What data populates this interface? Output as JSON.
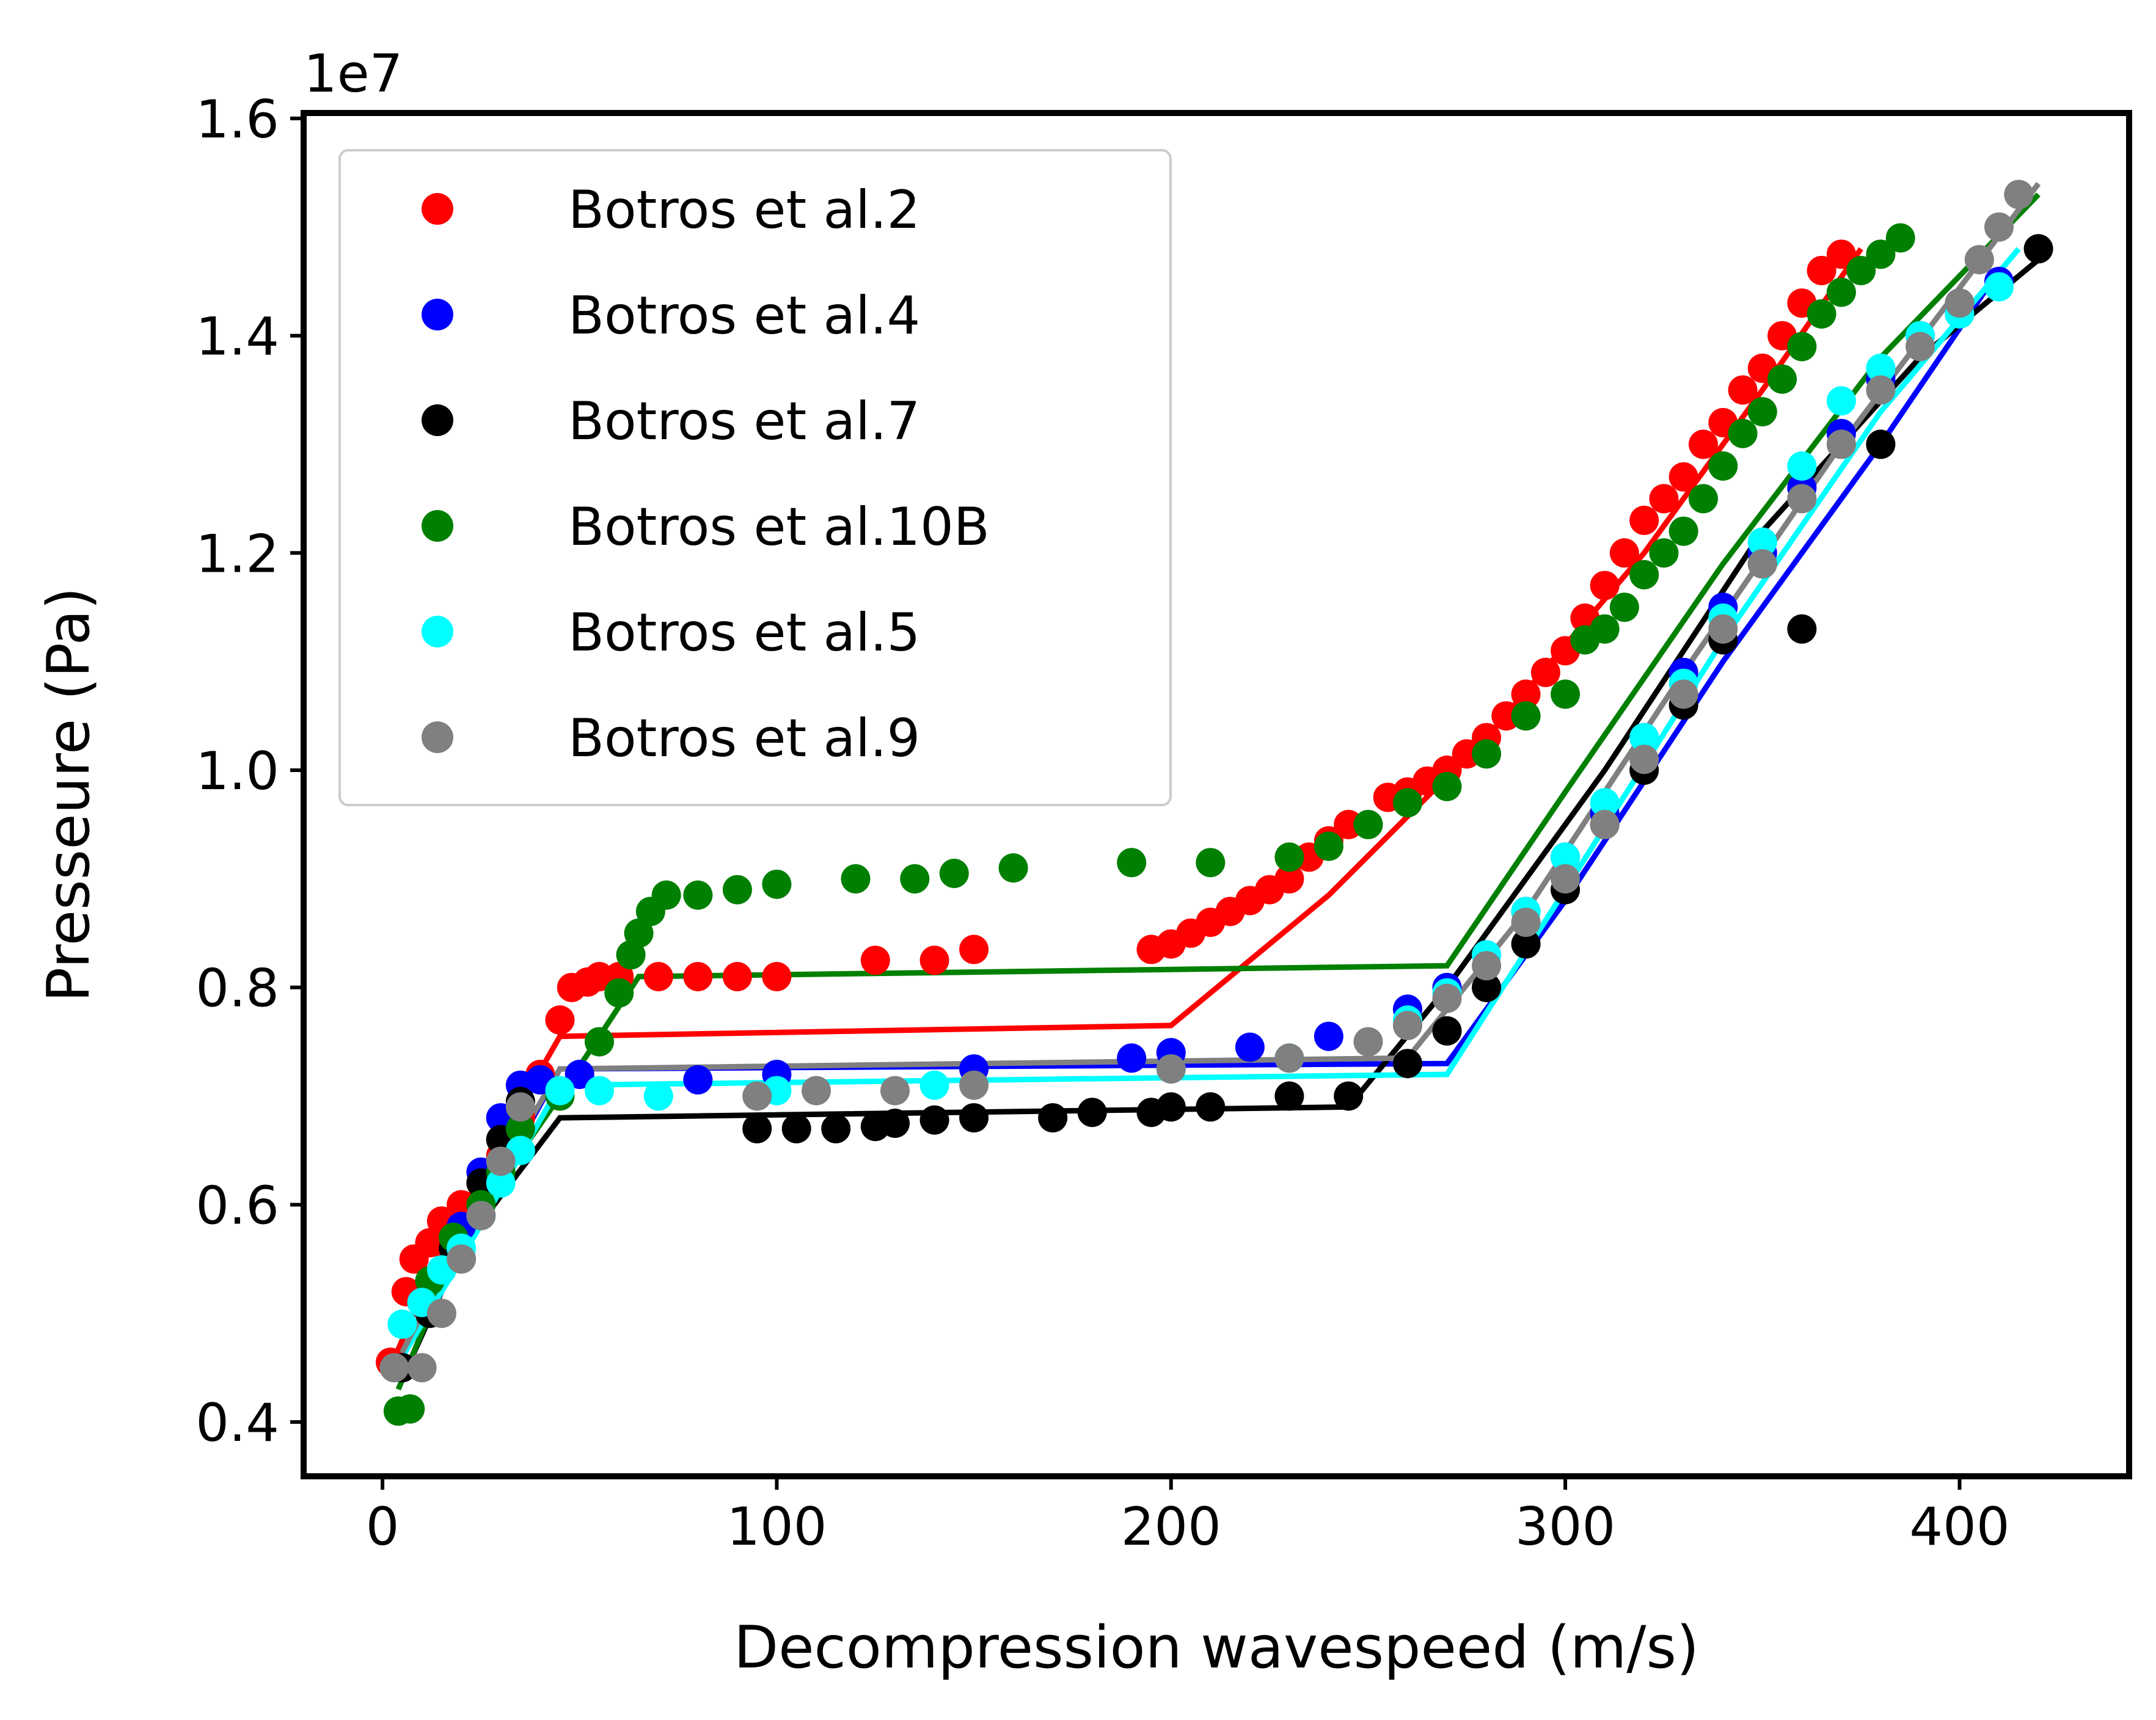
{
  "chart_data": {
    "type": "scatter",
    "xlabel": "Decompression wavespeed (m/s)",
    "ylabel": "Presseure (Pa)",
    "y_offset_label": "1e7",
    "xlim": [
      -20,
      443
    ],
    "ylim": [
      3.5,
      16.05
    ],
    "xticks": [
      0,
      100,
      200,
      300,
      400
    ],
    "xtick_labels": [
      "0",
      "100",
      "200",
      "300",
      "400"
    ],
    "yticks": [
      4,
      6,
      8,
      10,
      12,
      14,
      16
    ],
    "ytick_labels": [
      "0.4",
      "0.6",
      "0.8",
      "1.0",
      "1.2",
      "1.4",
      "1.6"
    ],
    "y_unit_note": "y values in units of 1e6 Pa (axis shows multiples of 1e7)",
    "legend_position": "upper-left",
    "series": [
      {
        "name": "Botros et al.2",
        "color": "#ff0000",
        "points": [
          [
            2,
            4.55
          ],
          [
            6,
            5.2
          ],
          [
            8,
            5.5
          ],
          [
            12,
            5.65
          ],
          [
            15,
            5.85
          ],
          [
            20,
            6.0
          ],
          [
            25,
            6.2
          ],
          [
            30,
            6.45
          ],
          [
            35,
            6.8
          ],
          [
            40,
            7.2
          ],
          [
            45,
            7.7
          ],
          [
            48,
            8.0
          ],
          [
            52,
            8.05
          ],
          [
            55,
            8.1
          ],
          [
            60,
            8.1
          ],
          [
            70,
            8.1
          ],
          [
            80,
            8.1
          ],
          [
            90,
            8.1
          ],
          [
            100,
            8.1
          ],
          [
            125,
            8.25
          ],
          [
            140,
            8.25
          ],
          [
            150,
            8.35
          ],
          [
            195,
            8.35
          ],
          [
            200,
            8.4
          ],
          [
            205,
            8.5
          ],
          [
            210,
            8.6
          ],
          [
            215,
            8.7
          ],
          [
            220,
            8.8
          ],
          [
            225,
            8.9
          ],
          [
            230,
            9.0
          ],
          [
            235,
            9.2
          ],
          [
            240,
            9.35
          ],
          [
            245,
            9.5
          ],
          [
            255,
            9.75
          ],
          [
            260,
            9.8
          ],
          [
            265,
            9.9
          ],
          [
            270,
            10.0
          ],
          [
            275,
            10.15
          ],
          [
            280,
            10.3
          ],
          [
            285,
            10.5
          ],
          [
            290,
            10.7
          ],
          [
            295,
            10.9
          ],
          [
            300,
            11.1
          ],
          [
            305,
            11.4
          ],
          [
            310,
            11.7
          ],
          [
            315,
            12.0
          ],
          [
            320,
            12.3
          ],
          [
            325,
            12.5
          ],
          [
            330,
            12.7
          ],
          [
            335,
            13.0
          ],
          [
            340,
            13.2
          ],
          [
            345,
            13.5
          ],
          [
            350,
            13.7
          ],
          [
            355,
            14.0
          ],
          [
            360,
            14.3
          ],
          [
            365,
            14.6
          ],
          [
            370,
            14.75
          ]
        ],
        "model_line": [
          [
            2,
            4.5
          ],
          [
            15,
            5.6
          ],
          [
            30,
            6.6
          ],
          [
            45,
            7.55
          ],
          [
            200,
            7.65
          ],
          [
            240,
            8.85
          ],
          [
            280,
            10.3
          ],
          [
            320,
            12.0
          ],
          [
            350,
            13.5
          ],
          [
            375,
            14.8
          ]
        ]
      },
      {
        "name": "Botros et al.4",
        "color": "#0000ff",
        "points": [
          [
            5,
            4.5
          ],
          [
            10,
            5.1
          ],
          [
            15,
            5.4
          ],
          [
            20,
            5.8
          ],
          [
            25,
            6.3
          ],
          [
            30,
            6.8
          ],
          [
            35,
            7.1
          ],
          [
            40,
            7.15
          ],
          [
            50,
            7.2
          ],
          [
            80,
            7.15
          ],
          [
            100,
            7.2
          ],
          [
            150,
            7.25
          ],
          [
            190,
            7.35
          ],
          [
            200,
            7.4
          ],
          [
            220,
            7.45
          ],
          [
            240,
            7.55
          ],
          [
            260,
            7.8
          ],
          [
            270,
            8.0
          ],
          [
            280,
            8.3
          ],
          [
            290,
            8.7
          ],
          [
            300,
            9.2
          ],
          [
            310,
            9.6
          ],
          [
            320,
            10.3
          ],
          [
            330,
            10.9
          ],
          [
            340,
            11.5
          ],
          [
            350,
            12.0
          ],
          [
            360,
            12.6
          ],
          [
            370,
            13.1
          ],
          [
            380,
            13.6
          ],
          [
            390,
            14.0
          ],
          [
            400,
            14.3
          ],
          [
            410,
            14.5
          ]
        ],
        "model_line": [
          [
            5,
            4.4
          ],
          [
            20,
            5.6
          ],
          [
            45,
            7.25
          ],
          [
            270,
            7.3
          ],
          [
            300,
            8.8
          ],
          [
            340,
            11.0
          ],
          [
            380,
            13.0
          ],
          [
            410,
            14.6
          ]
        ]
      },
      {
        "name": "Botros et al.7",
        "color": "#000000",
        "points": [
          [
            5,
            4.5
          ],
          [
            12,
            5.0
          ],
          [
            18,
            5.6
          ],
          [
            25,
            6.2
          ],
          [
            30,
            6.6
          ],
          [
            35,
            6.95
          ],
          [
            95,
            6.7
          ],
          [
            105,
            6.7
          ],
          [
            115,
            6.7
          ],
          [
            125,
            6.72
          ],
          [
            130,
            6.75
          ],
          [
            140,
            6.78
          ],
          [
            150,
            6.8
          ],
          [
            170,
            6.8
          ],
          [
            180,
            6.85
          ],
          [
            195,
            6.85
          ],
          [
            200,
            6.9
          ],
          [
            210,
            6.9
          ],
          [
            230,
            7.0
          ],
          [
            245,
            7.0
          ],
          [
            260,
            7.3
          ],
          [
            270,
            7.6
          ],
          [
            280,
            8.0
          ],
          [
            290,
            8.4
          ],
          [
            300,
            8.9
          ],
          [
            310,
            9.5
          ],
          [
            320,
            10.0
          ],
          [
            330,
            10.6
          ],
          [
            340,
            11.2
          ],
          [
            350,
            11.9
          ],
          [
            360,
            11.3
          ],
          [
            380,
            13.0
          ],
          [
            400,
            14.2
          ],
          [
            420,
            14.8
          ]
        ],
        "model_line": [
          [
            5,
            4.4
          ],
          [
            20,
            5.6
          ],
          [
            45,
            6.8
          ],
          [
            245,
            6.9
          ],
          [
            270,
            8.0
          ],
          [
            310,
            10.0
          ],
          [
            350,
            12.2
          ],
          [
            390,
            13.8
          ],
          [
            420,
            14.7
          ]
        ]
      },
      {
        "name": "Botros et al.10B",
        "color": "#008000",
        "points": [
          [
            4,
            4.1
          ],
          [
            7,
            4.12
          ],
          [
            12,
            5.3
          ],
          [
            18,
            5.7
          ],
          [
            25,
            6.0
          ],
          [
            30,
            6.3
          ],
          [
            35,
            6.7
          ],
          [
            45,
            7.0
          ],
          [
            55,
            7.5
          ],
          [
            60,
            7.95
          ],
          [
            63,
            8.3
          ],
          [
            65,
            8.5
          ],
          [
            68,
            8.7
          ],
          [
            72,
            8.85
          ],
          [
            80,
            8.85
          ],
          [
            90,
            8.9
          ],
          [
            100,
            8.95
          ],
          [
            120,
            9.0
          ],
          [
            135,
            9.0
          ],
          [
            145,
            9.05
          ],
          [
            160,
            9.1
          ],
          [
            190,
            9.15
          ],
          [
            210,
            9.15
          ],
          [
            230,
            9.2
          ],
          [
            240,
            9.3
          ],
          [
            250,
            9.5
          ],
          [
            260,
            9.7
          ],
          [
            270,
            9.85
          ],
          [
            280,
            10.15
          ],
          [
            290,
            10.5
          ],
          [
            300,
            10.7
          ],
          [
            305,
            11.2
          ],
          [
            310,
            11.3
          ],
          [
            315,
            11.5
          ],
          [
            320,
            11.8
          ],
          [
            325,
            12.0
          ],
          [
            330,
            12.2
          ],
          [
            335,
            12.5
          ],
          [
            340,
            12.8
          ],
          [
            345,
            13.1
          ],
          [
            350,
            13.3
          ],
          [
            355,
            13.6
          ],
          [
            360,
            13.9
          ],
          [
            365,
            14.2
          ],
          [
            370,
            14.4
          ],
          [
            375,
            14.6
          ],
          [
            380,
            14.75
          ],
          [
            385,
            14.9
          ]
        ],
        "model_line": [
          [
            4,
            4.3
          ],
          [
            20,
            5.7
          ],
          [
            45,
            7.0
          ],
          [
            65,
            8.1
          ],
          [
            270,
            8.2
          ],
          [
            300,
            9.8
          ],
          [
            340,
            11.9
          ],
          [
            380,
            13.8
          ],
          [
            420,
            15.3
          ]
        ]
      },
      {
        "name": "Botros et al.5",
        "color": "#00ffff",
        "points": [
          [
            5,
            4.9
          ],
          [
            10,
            5.1
          ],
          [
            15,
            5.4
          ],
          [
            20,
            5.6
          ],
          [
            25,
            5.9
          ],
          [
            30,
            6.2
          ],
          [
            35,
            6.5
          ],
          [
            45,
            7.05
          ],
          [
            55,
            7.05
          ],
          [
            70,
            7.0
          ],
          [
            100,
            7.05
          ],
          [
            140,
            7.1
          ],
          [
            200,
            7.25
          ],
          [
            230,
            7.35
          ],
          [
            260,
            7.7
          ],
          [
            270,
            7.95
          ],
          [
            280,
            8.3
          ],
          [
            290,
            8.7
          ],
          [
            300,
            9.2
          ],
          [
            310,
            9.7
          ],
          [
            320,
            10.3
          ],
          [
            330,
            10.8
          ],
          [
            340,
            11.4
          ],
          [
            350,
            12.1
          ],
          [
            360,
            12.8
          ],
          [
            370,
            13.4
          ],
          [
            380,
            13.7
          ],
          [
            390,
            14.0
          ],
          [
            400,
            14.2
          ],
          [
            410,
            14.45
          ]
        ],
        "model_line": [
          [
            5,
            4.6
          ],
          [
            20,
            5.5
          ],
          [
            45,
            7.1
          ],
          [
            270,
            7.2
          ],
          [
            300,
            8.9
          ],
          [
            340,
            11.2
          ],
          [
            380,
            13.3
          ],
          [
            415,
            14.8
          ]
        ]
      },
      {
        "name": "Botros et al.9",
        "color": "#808080",
        "points": [
          [
            3,
            4.5
          ],
          [
            10,
            4.5
          ],
          [
            15,
            5.0
          ],
          [
            20,
            5.5
          ],
          [
            25,
            5.9
          ],
          [
            30,
            6.4
          ],
          [
            35,
            6.9
          ],
          [
            95,
            7.0
          ],
          [
            110,
            7.05
          ],
          [
            130,
            7.05
          ],
          [
            150,
            7.1
          ],
          [
            200,
            7.25
          ],
          [
            230,
            7.35
          ],
          [
            250,
            7.5
          ],
          [
            260,
            7.65
          ],
          [
            270,
            7.9
          ],
          [
            280,
            8.2
          ],
          [
            290,
            8.6
          ],
          [
            300,
            9.0
          ],
          [
            310,
            9.5
          ],
          [
            320,
            10.1
          ],
          [
            330,
            10.7
          ],
          [
            340,
            11.3
          ],
          [
            350,
            11.9
          ],
          [
            360,
            12.5
          ],
          [
            370,
            13.0
          ],
          [
            380,
            13.5
          ],
          [
            390,
            13.9
          ],
          [
            400,
            14.3
          ],
          [
            405,
            14.7
          ],
          [
            410,
            15.0
          ],
          [
            415,
            15.3
          ]
        ],
        "model_line": [
          [
            3,
            4.5
          ],
          [
            20,
            5.7
          ],
          [
            45,
            7.25
          ],
          [
            260,
            7.35
          ],
          [
            290,
            8.7
          ],
          [
            330,
            10.9
          ],
          [
            370,
            13.0
          ],
          [
            420,
            15.4
          ]
        ]
      }
    ]
  }
}
